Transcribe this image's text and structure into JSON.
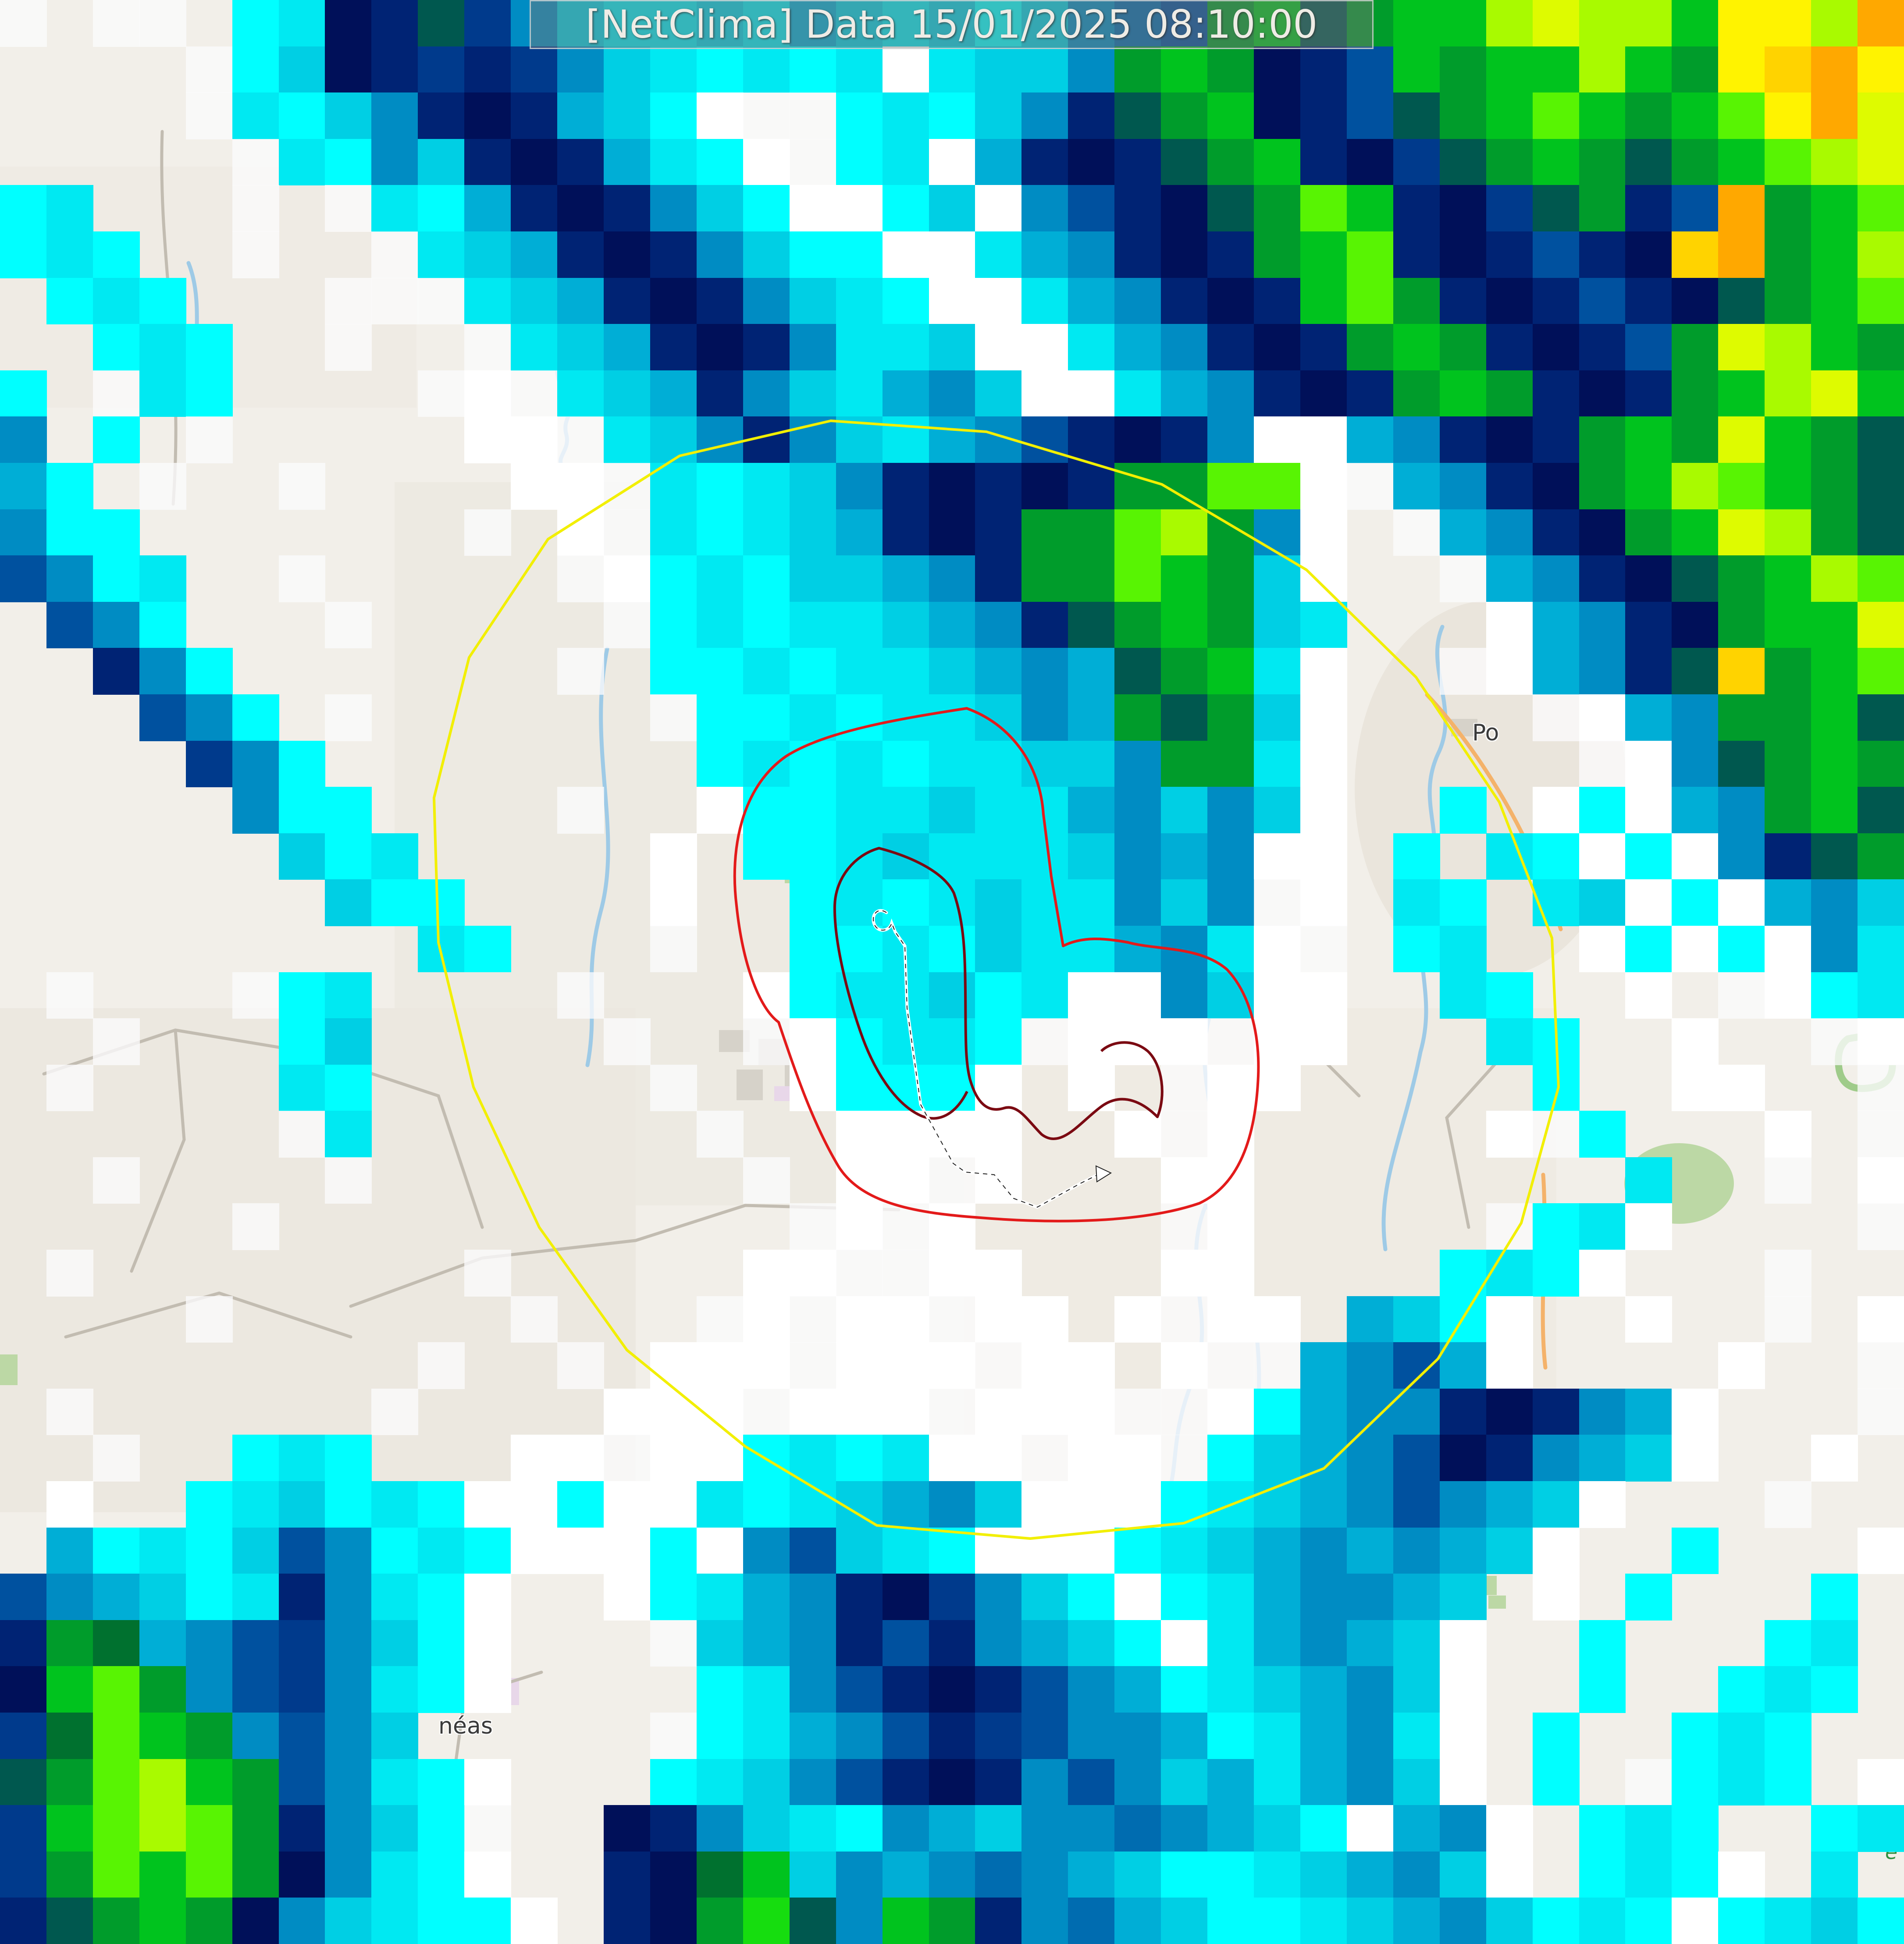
{
  "title_bar": {
    "text": "[NetClima] Data 15/01/2025 08:10:00"
  },
  "labels": {
    "city_po": "Po",
    "city_neas": "néas",
    "park_e": "e"
  },
  "map_features": {
    "background": "#f2efe9",
    "water": "#9ecae6",
    "road_orange": "#f4b26a",
    "road_grey": "#c2bcb1",
    "park": "#bcd8a5",
    "urban": "#d6d2c9",
    "residential": "#e8d7e9"
  },
  "contours": {
    "range_ring": {
      "color": "#f2ef00"
    },
    "outer_cell": {
      "color": "#e31a1a"
    },
    "inner_cell": {
      "color": "#7b0a12"
    },
    "track": {
      "color": "#ffffff",
      "dash": "#222222"
    }
  },
  "radar": {
    "cols": 41,
    "rows": 42,
    "palette": {
      "f": "rgba(251,251,252,0.78)",
      "w": "#ffffff",
      "c": "#00ffff",
      "d": "#00e9f2",
      "e": "#00cfe4",
      "m": "#00aed6",
      "b": "#008cc3",
      "p": "#006cb0",
      "B": "#00519f",
      "n": "#003a8c",
      "N": "#002374",
      "v": "#001059",
      "t": "#00584f",
      "G": "#00712f",
      "g": "#009c2b",
      "h": "#00c31e",
      "H": "#16dd0f",
      "l": "#58f403",
      "L": "#a9fa00",
      "y": "#defb00",
      "Y": "#fff300",
      "o": "#ffd300",
      "O": "#ffa800"
    },
    "grid": [
      "f.ff.cdvNtnbeddedmedecebpBghtghhLyLLhYYLO",
      "....fcevNnNnbedcdcdwdeebghgvNBhghhLhgYoOY",
      "....fdcebNvNmecwffcdcebNtghvNBtghlhghlYOy",
      ".....fdcbeNvNmdcwfcdwmNvNtghNvntghgtghlLy",
      "cd...f.fdcmNvNbecwwcewbBNvtglhNvntgNBOghl",
      "cdc..f..fdemNvNbeccwwdmbNvNghlNvNBNvoOghL",
      ".cdc...fffdemNvNbedcwwdmbNvNhlgNvNBNvtghl",
      "..cdc..f..fdemNvNbddewwdmbNvNghgNvNBgyLhg",
      "c.fdc....fwfdemNbedmbewwdmbNvNghgNvNghLyh",
      "b.c.f.....wwfdebNbedmbBNvNbwwmbNvNghgyhgt",
      "mc.f..f....wwfdcdebNvNvNggllwfmbNvghLlhgt",
      "bcc.......f.wfdcdemNvNgglLgbw.fmbNvghyLgt",
      "Bbcd..f.....fwcdceembNgglhgew..fmbNvtghLl",
      ".Bbc...f.....fcdcddembNtghged...wmbNvghhy",
      "..Nbc.......f.ccdcddembmtghdw..fwmbNtoghl",
      "...Bbc.f......fccdcddebmgtgew....fwmbgght",
      "....nbc........cdcdcddeebggdw.....fwbtghg",
      ".....bcc....f..wccddeddmbebew..c.wcwmbght",
      "......ecd.....w.ccdedddebmbww.c.dcwcwbNtg",
      ".......ecc....w..cdcdeddbebfw.dc.dewcwmbe",
      ".........dc...f..ccdceddmbdwf.cd..wcwcwbd",
      ".f...fcd....f...wcddecdwwbeww..dc..w.fwcd",
      "..f...ce.....f..fwcddcfwwwfww...dc..w..fw",
      ".f....dc......f..wcccw.w.fww.....c..ww..f",
      "......fd.......f..wwww..wfw.....wfc...w.f",
      "..f....f........f.wwfw...ww........d..f.w",
      ".....f...........fwfw....fw.....fcdw....f",
      ".f........f.....wwffww...ww....cdcw...f..",
      "....f......f...fwfwwfww.wfww.mecw..w..f.w",
      ".........f..f.wwwfwwwfww.wffmbBmw....w..f",
      ".f......f....wwwfwwwfwwwffwcmbbNvNbmw...f",
      "..f..cdc...wwfwwcdcdwwfwwfcembBvNbmew..w.",
      ".w..cdecdcwwcwwdcdembewwwcdembBbmew...f..",
      ".mcdceBbcdcwwwcwbBedcwwwcdembmbmew..c...w",
      "BbmecdNbdcw..wcdmbNvnbecwcdmbbme.w.c...c.",
      "NgGmbBnbecw...fembNBNbmecwdmbmew..c...cd.",
      "vhlgbBnbdcw....cdbBNvNBbmcdembew..c..cdc.",
      "nGlhgbBbe.....fcdmbBNnBbbmcdmbdw.c..cdc..",
      "tglLhgBbdcw...cdebBNvNbBbemdmbew.c.fcdc.w",
      "nhlLlgNbecf..vNbedcbmebbpbmecwmbw.cdc..cd",
      "nglhlgvbdcw..NvGhebmbpbmeccdembew.cdcw.d.",
      "Ntghgvbedccw.NvgHtbhgNbpmeccdembecdcwcdec"
    ]
  }
}
